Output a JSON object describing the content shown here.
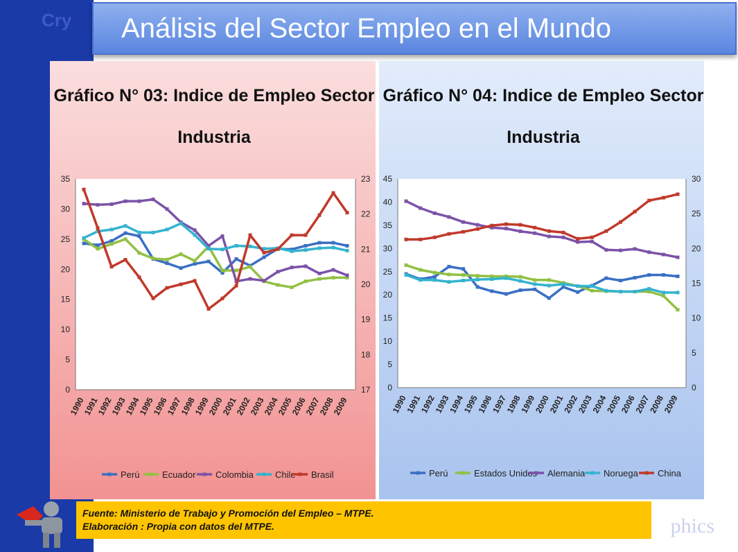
{
  "header": {
    "title": "Análisis del Sector Empleo en el Mundo"
  },
  "watermark": {
    "top_text": "Cry",
    "bottom_text": "phics"
  },
  "source": {
    "line1": "Fuente: Ministerio de Trabajo y Promoción del Empleo – MTPE.",
    "line2": "Elaboración : Propia con datos del MTPE."
  },
  "colors": {
    "Perú": "#3a6fc4",
    "Ecuador": "#92c043",
    "Colombia": "#7c52a8",
    "Chile": "#34b3cf",
    "Brasil": "#c0392b",
    "Estados Unidos": "#92c043",
    "Alemania": "#7c52a8",
    "Noruega": "#34b3cf",
    "China": "#c0392b"
  },
  "chart_data": [
    {
      "type": "line",
      "title": [
        "Gráfico N° 03: Indice de Empleo Sector",
        "Industria"
      ],
      "x": [
        "1990",
        "1991",
        "1992",
        "1993",
        "1994",
        "1995",
        "1996",
        "1997",
        "1998",
        "1999",
        "2000",
        "2001",
        "2002",
        "2003",
        "2004",
        "2005",
        "2006",
        "2007",
        "2008",
        "2009"
      ],
      "y_left": {
        "ylim": [
          0,
          35
        ],
        "ticks": [
          "0",
          "5",
          "10",
          "15",
          "20",
          "25",
          "30",
          "35"
        ]
      },
      "y_right": {
        "ylim": [
          17,
          23
        ],
        "ticks": [
          "17",
          "18",
          "19",
          "20",
          "21",
          "22",
          "23"
        ]
      },
      "series": [
        {
          "name": "Perú",
          "axis": "left",
          "values": [
            24.3,
            24.0,
            24.7,
            26.0,
            25.5,
            21.7,
            21.0,
            20.2,
            20.9,
            21.3,
            19.4,
            21.7,
            20.6,
            22.0,
            23.4,
            23.3,
            23.9,
            24.4,
            24.4,
            23.9
          ]
        },
        {
          "name": "Ecuador",
          "axis": "left",
          "values": [
            25.0,
            23.4,
            24.2,
            25.0,
            22.7,
            21.8,
            21.6,
            22.5,
            21.4,
            23.8,
            19.8,
            19.8,
            20.4,
            18.0,
            17.4,
            17.0,
            18.0,
            18.4,
            18.6,
            18.6
          ]
        },
        {
          "name": "Colombia",
          "axis": "left",
          "values": [
            30.9,
            30.7,
            30.8,
            31.3,
            31.3,
            31.6,
            30.0,
            27.8,
            26.5,
            23.9,
            25.5,
            18.0,
            18.4,
            18.1,
            19.6,
            20.3,
            20.5,
            19.3,
            19.9,
            19.0
          ]
        },
        {
          "name": "Chile",
          "axis": "left",
          "values": [
            25.2,
            26.3,
            26.6,
            27.2,
            26.1,
            26.1,
            26.6,
            27.6,
            25.7,
            23.4,
            23.3,
            23.9,
            23.8,
            23.4,
            23.5,
            23.0,
            23.2,
            23.5,
            23.6,
            23.1
          ]
        },
        {
          "name": "Brasil",
          "axis": "right",
          "values": [
            22.7,
            21.6,
            20.5,
            20.7,
            20.2,
            19.6,
            19.9,
            20.0,
            20.1,
            19.3,
            19.6,
            19.96,
            21.4,
            20.9,
            21.0,
            21.4,
            21.4,
            21.97,
            22.6,
            22.04
          ]
        }
      ],
      "legend": "bottom"
    },
    {
      "type": "line",
      "title": [
        "Gráfico N° 04: Indice de Empleo Sector",
        "Industria"
      ],
      "x": [
        "1990",
        "1991",
        "1992",
        "1993",
        "1994",
        "1995",
        "1996",
        "1997",
        "1998",
        "1999",
        "2000",
        "2001",
        "2002",
        "2003",
        "2004",
        "2005",
        "2006",
        "2007",
        "2008",
        "2009"
      ],
      "y_left": {
        "ylim": [
          0,
          45
        ],
        "ticks": [
          "0",
          "5",
          "10",
          "15",
          "20",
          "25",
          "30",
          "35",
          "40",
          "45"
        ]
      },
      "y_right": {
        "ylim": [
          0,
          30
        ],
        "ticks": [
          "0",
          "5",
          "10",
          "15",
          "20",
          "25",
          "30"
        ]
      },
      "series": [
        {
          "name": "Perú",
          "axis": "left",
          "values": [
            24.5,
            23.4,
            23.9,
            26.1,
            25.6,
            21.7,
            20.8,
            20.2,
            21.0,
            21.2,
            19.3,
            21.7,
            20.6,
            22.0,
            23.6,
            23.1,
            23.7,
            24.3,
            24.3,
            24.0
          ]
        },
        {
          "name": "Estados Unidos",
          "axis": "left",
          "values": [
            26.4,
            25.4,
            24.8,
            24.4,
            24.3,
            24.1,
            24.0,
            24.0,
            23.9,
            23.2,
            23.2,
            22.6,
            21.9,
            20.9,
            20.8,
            20.7,
            20.7,
            20.7,
            19.8,
            16.8
          ]
        },
        {
          "name": "Alemania",
          "axis": "left",
          "values": [
            40.2,
            38.7,
            37.6,
            36.8,
            35.7,
            35.1,
            34.5,
            34.3,
            33.7,
            33.3,
            32.6,
            32.4,
            31.4,
            31.5,
            29.7,
            29.6,
            29.9,
            29.2,
            28.7,
            28.1
          ]
        },
        {
          "name": "Noruega",
          "axis": "left",
          "values": [
            24.3,
            23.2,
            23.2,
            22.8,
            23.1,
            23.3,
            23.4,
            23.6,
            23.0,
            22.3,
            22.0,
            22.3,
            21.9,
            21.9,
            20.9,
            20.7,
            20.7,
            21.3,
            20.5,
            20.5
          ]
        },
        {
          "name": "China",
          "axis": "right",
          "values": [
            21.3,
            21.3,
            21.6,
            22.1,
            22.4,
            22.8,
            23.3,
            23.5,
            23.4,
            23.0,
            22.5,
            22.3,
            21.4,
            21.6,
            22.5,
            23.8,
            25.3,
            26.9,
            27.3,
            27.8
          ]
        }
      ],
      "legend": "bottom"
    }
  ]
}
